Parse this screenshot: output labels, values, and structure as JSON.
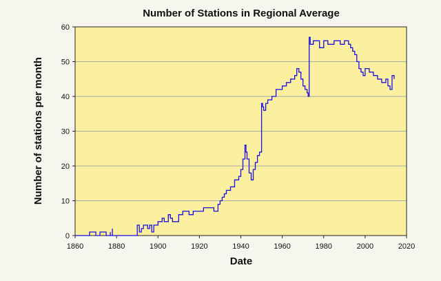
{
  "colors": {
    "page_background": "#f6f6ee",
    "plot_background": "#faf0a0",
    "series": "#1a0fe6",
    "gridline": "#a8a8a8",
    "axis": "#222222"
  },
  "chart_data": {
    "type": "line",
    "title": "Number of Stations in Regional Average",
    "xlabel": "Date",
    "ylabel": "Number of stations per month",
    "xlim": [
      1860,
      2020
    ],
    "ylim": [
      0,
      60
    ],
    "x_ticks": [
      1860,
      1880,
      1900,
      1920,
      1940,
      1960,
      1980,
      2000,
      2020
    ],
    "y_ticks": [
      0,
      10,
      20,
      30,
      40,
      50,
      60
    ],
    "grid": "horizontal",
    "legend": "none",
    "series": [
      {
        "x": [
          1860,
          1867,
          1867,
          1870,
          1872,
          1875,
          1877,
          1877,
          1878,
          1878,
          1890,
          1890,
          1891,
          1892,
          1893,
          1895,
          1896,
          1897,
          1898,
          1900,
          1902,
          1903,
          1905,
          1906,
          1907,
          1910,
          1912,
          1915,
          1917,
          1920,
          1922,
          1925,
          1927,
          1929,
          1930,
          1931,
          1932,
          1933,
          1935,
          1937,
          1939,
          1940,
          1941,
          1942,
          1942.5,
          1943,
          1944,
          1945,
          1946,
          1947,
          1948,
          1949,
          1950,
          1950.5,
          1951,
          1952,
          1953,
          1955,
          1957,
          1960,
          1962,
          1964,
          1966,
          1967,
          1968,
          1969,
          1970,
          1971,
          1972,
          1972.5,
          1973,
          1973.5,
          1975,
          1977,
          1978,
          1980,
          1982,
          1985,
          1988,
          1990,
          1992,
          1993,
          1994,
          1995,
          1996,
          1997,
          1998,
          1999,
          2000,
          2002,
          2004,
          2006,
          2008,
          2010,
          2011,
          2012,
          2013,
          2014
        ],
        "y": [
          0,
          0,
          1,
          0,
          1,
          0,
          1,
          0,
          2,
          0,
          1,
          3,
          1,
          2,
          3,
          2,
          3,
          1,
          3,
          4,
          5,
          4,
          6,
          5,
          4,
          6,
          7,
          6,
          7,
          7,
          8,
          8,
          7,
          9,
          10,
          11,
          12,
          13,
          14,
          16,
          17,
          19,
          22,
          26,
          24,
          22,
          18,
          16,
          19,
          21,
          23,
          24,
          38,
          37,
          36,
          38,
          39,
          40,
          42,
          43,
          44,
          45,
          46,
          48,
          47,
          45,
          43,
          42,
          41,
          40,
          57,
          55,
          56,
          56,
          54,
          56,
          55,
          56,
          55,
          56,
          55,
          54,
          53,
          52,
          50,
          48,
          47,
          46,
          48,
          47,
          46,
          45,
          44,
          45,
          43,
          42,
          46,
          45
        ]
      }
    ]
  }
}
